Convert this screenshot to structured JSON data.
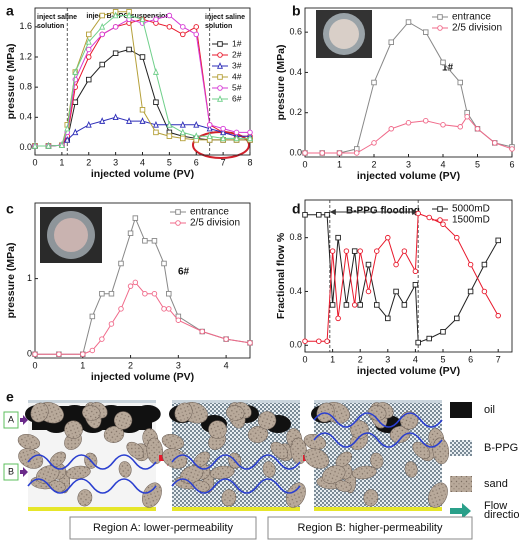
{
  "chart_data": [
    {
      "type": "line",
      "panel": "a",
      "x_label": "injected volume (PV)",
      "y_label": "pressure (MPa)",
      "xlim": [
        0,
        8
      ],
      "xticks": [
        0,
        1,
        2,
        3,
        4,
        5,
        6,
        7,
        8
      ],
      "ylim": [
        -0.1,
        1.85
      ],
      "yticks": [
        {
          "value": 0,
          "label": "0.0"
        },
        {
          "value": 0.4,
          "label": "0.4"
        },
        {
          "value": 0.8,
          "label": "0.8"
        },
        {
          "value": 1.2,
          "label": "1.2"
        },
        {
          "value": 1.6,
          "label": "1.6"
        }
      ],
      "vlines": [
        1.2,
        6.5
      ],
      "legend": "right",
      "annotations": [
        "inject saline solution",
        "inject B-PPG suspension",
        "inject saline solution"
      ],
      "x": [
        0,
        0.5,
        1,
        1.2,
        1.5,
        2,
        2.5,
        3,
        3.5,
        4,
        4.5,
        5,
        5.5,
        6,
        6.5,
        7,
        7.5,
        8
      ],
      "series": [
        {
          "name": "1#",
          "color": "#222222",
          "marker": "square",
          "values": [
            0.02,
            0.02,
            0.03,
            0.1,
            0.6,
            0.9,
            1.1,
            1.25,
            1.3,
            1.2,
            0.6,
            0.2,
            0.15,
            0.12,
            0.1,
            0.1,
            0.1,
            0.1
          ]
        },
        {
          "name": "2#",
          "color": "#e8192c",
          "marker": "circle",
          "values": [
            0.02,
            0.02,
            0.03,
            0.15,
            0.8,
            1.2,
            1.5,
            1.6,
            1.65,
            1.7,
            1.65,
            1.6,
            1.5,
            1.6,
            0.3,
            0.2,
            0.15,
            0.15
          ]
        },
        {
          "name": "3#",
          "color": "#2d2db8",
          "marker": "triangle",
          "values": [
            0.02,
            0.02,
            0.03,
            0.1,
            0.2,
            0.3,
            0.35,
            0.4,
            0.35,
            0.35,
            0.3,
            0.3,
            0.3,
            0.3,
            0.25,
            0.2,
            0.15,
            0.15
          ]
        },
        {
          "name": "4#",
          "color": "#b5a03a",
          "marker": "square",
          "values": [
            0.02,
            0.02,
            0.03,
            0.3,
            1.0,
            1.5,
            1.75,
            1.8,
            1.8,
            0.5,
            0.2,
            0.15,
            0.12,
            0.1,
            0.1,
            0.1,
            0.1,
            0.1
          ]
        },
        {
          "name": "5#",
          "color": "#d63bd6",
          "marker": "circle",
          "values": [
            0.02,
            0.02,
            0.03,
            0.2,
            0.9,
            1.3,
            1.5,
            1.6,
            1.7,
            1.65,
            1.7,
            1.75,
            1.6,
            1.5,
            0.3,
            0.25,
            0.2,
            0.2
          ]
        },
        {
          "name": "6#",
          "color": "#6fcf8a",
          "marker": "triangle",
          "values": [
            0.02,
            0.02,
            0.03,
            0.25,
            1.0,
            1.4,
            1.6,
            1.75,
            1.75,
            1.7,
            1.0,
            0.3,
            0.2,
            0.15,
            0.15,
            0.12,
            0.12,
            0.12
          ]
        }
      ]
    },
    {
      "type": "line",
      "panel": "b",
      "x_label": "injected volume (PV)",
      "y_label": "pressure (MPa)",
      "xlim": [
        0,
        6
      ],
      "xticks": [
        0,
        1,
        2,
        3,
        4,
        5,
        6
      ],
      "ylim": [
        -0.02,
        0.72
      ],
      "yticks": [
        {
          "value": 0,
          "label": "0.0"
        },
        {
          "value": 0.2,
          "label": "0.2"
        },
        {
          "value": 0.4,
          "label": "0.4"
        },
        {
          "value": 0.6,
          "label": "0.6"
        }
      ],
      "legend": "upper right",
      "annotations": [
        "1#"
      ],
      "x": [
        0,
        0.5,
        1,
        1.5,
        2,
        2.5,
        3,
        3.5,
        4,
        4.5,
        4.7,
        5,
        5.5,
        6
      ],
      "series": [
        {
          "name": "entrance",
          "color": "#888888",
          "marker": "square",
          "values": [
            0,
            0,
            0,
            0.02,
            0.35,
            0.55,
            0.65,
            0.6,
            0.45,
            0.35,
            0.2,
            0.12,
            0.05,
            0.03
          ]
        },
        {
          "name": "2/5 division",
          "color": "#f06a8a",
          "marker": "circle",
          "values": [
            0,
            0,
            0,
            0,
            0.05,
            0.12,
            0.15,
            0.16,
            0.14,
            0.13,
            0.18,
            0.12,
            0.05,
            0.02
          ]
        }
      ]
    },
    {
      "type": "line",
      "panel": "c",
      "x_label": "injected volume (PV)",
      "y_label": "pressure (MPa)",
      "xlim": [
        0,
        4.5
      ],
      "xticks": [
        0,
        1,
        2,
        3,
        4
      ],
      "ylim": [
        -0.05,
        2.0
      ],
      "yticks": [
        0,
        1
      ],
      "legend": "upper right",
      "annotations": [
        "6#"
      ],
      "x": [
        0,
        0.5,
        1,
        1.2,
        1.4,
        1.6,
        1.8,
        2,
        2.1,
        2.3,
        2.5,
        2.7,
        2.8,
        3,
        3.5,
        4,
        4.5
      ],
      "series": [
        {
          "name": "entrance",
          "color": "#888888",
          "marker": "square",
          "values": [
            0,
            0,
            0,
            0.5,
            0.8,
            0.8,
            1.2,
            1.6,
            1.8,
            1.5,
            1.5,
            1.2,
            0.8,
            0.5,
            0.3,
            0.2,
            0.15
          ]
        },
        {
          "name": "2/5 division",
          "color": "#f06a8a",
          "marker": "circle",
          "values": [
            0,
            0,
            0,
            0.05,
            0.2,
            0.4,
            0.6,
            0.9,
            0.95,
            0.8,
            0.8,
            0.6,
            0.6,
            0.45,
            0.3,
            0.2,
            0.15
          ]
        }
      ]
    },
    {
      "type": "line",
      "panel": "d",
      "x_label": "injected volume (PV)",
      "y_label": "Fractional flow %",
      "xlim": [
        0,
        7.5
      ],
      "xticks": [
        0,
        1,
        2,
        3,
        4,
        5,
        6,
        7
      ],
      "ylim": [
        -0.05,
        1.08
      ],
      "yticks": [
        {
          "value": 0,
          "label": "0.0"
        },
        {
          "value": 0.4,
          "label": "0.4"
        },
        {
          "value": 0.8,
          "label": "0.8"
        }
      ],
      "vlines": [
        0.9,
        4.1
      ],
      "legend": "upper right",
      "annotations": [
        "B-PPG flooding"
      ],
      "x": [
        0,
        0.5,
        0.8,
        1,
        1.2,
        1.5,
        1.8,
        2,
        2.3,
        2.6,
        3,
        3.3,
        3.6,
        4,
        4.1,
        4.5,
        5,
        5.5,
        6,
        6.5,
        7
      ],
      "series": [
        {
          "name": "5000mD",
          "color": "#222222",
          "marker": "square",
          "values": [
            0.97,
            0.97,
            0.97,
            0.3,
            0.8,
            0.3,
            0.7,
            0.3,
            0.6,
            0.3,
            0.2,
            0.4,
            0.3,
            0.45,
            0.02,
            0.05,
            0.1,
            0.2,
            0.4,
            0.6,
            0.78
          ]
        },
        {
          "name": "1500mD",
          "color": "#e8192c",
          "marker": "circle",
          "values": [
            0.03,
            0.03,
            0.03,
            0.7,
            0.2,
            0.7,
            0.3,
            0.7,
            0.4,
            0.7,
            0.8,
            0.6,
            0.7,
            0.55,
            0.98,
            0.95,
            0.9,
            0.8,
            0.6,
            0.4,
            0.22
          ]
        }
      ]
    }
  ],
  "diagram": {
    "panel": "e",
    "row_labels": [
      "A",
      "B"
    ],
    "legend": [
      "oil",
      "B-PPG",
      "sand",
      "Flow direction"
    ],
    "regions": [
      "Region A: lower-permeability",
      "Region B: higher-permeability"
    ]
  }
}
